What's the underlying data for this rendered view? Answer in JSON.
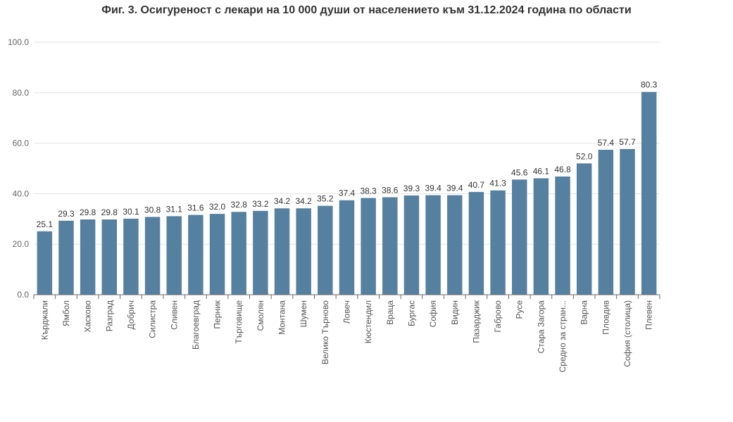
{
  "chart_data": {
    "type": "bar",
    "title": "Фиг. 3. Осигуреност с лекари на 10 000 души от населението към 31.12.2024 година по области",
    "xlabel": "",
    "ylabel": "",
    "ylim": [
      0,
      100
    ],
    "yticks": [
      "0.0",
      "20.0",
      "40.0",
      "60.0",
      "80.0",
      "100.0"
    ],
    "grid": true,
    "legend": "none",
    "bar_color": "#56809f",
    "categories": [
      "Кърджали",
      "Ямбол",
      "Хасково",
      "Разград",
      "Добрич",
      "Силистра",
      "Сливен",
      "Благоевград",
      "Перник",
      "Търговище",
      "Смолян",
      "Монтана",
      "Шумен",
      "Велико Търново",
      "Ловеч",
      "Кюстендил",
      "Враца",
      "Бургас",
      "София",
      "Видин",
      "Пазарджик",
      "Габрово",
      "Русе",
      "Стара Загора",
      "Средно за стран...",
      "Варна",
      "Пловдив",
      "София (столица)",
      "Плевен"
    ],
    "values": [
      25.1,
      29.3,
      29.8,
      29.8,
      30.1,
      30.8,
      31.1,
      31.6,
      32.0,
      32.8,
      33.2,
      34.2,
      34.2,
      35.2,
      37.4,
      38.3,
      38.6,
      39.3,
      39.4,
      39.4,
      40.7,
      41.3,
      45.6,
      46.1,
      46.8,
      52.0,
      57.4,
      57.7,
      80.3
    ],
    "value_labels": [
      "25.1",
      "29.3",
      "29.8",
      "29.8",
      "30.1",
      "30.8",
      "31.1",
      "31.6",
      "32.0",
      "32.8",
      "33.2",
      "34.2",
      "34.2",
      "35.2",
      "37.4",
      "38.3",
      "38.6",
      "39.3",
      "39.4",
      "39.4",
      "40.7",
      "41.3",
      "45.6",
      "46.1",
      "46.8",
      "52.0",
      "57.4",
      "57.7",
      "80.3"
    ]
  }
}
